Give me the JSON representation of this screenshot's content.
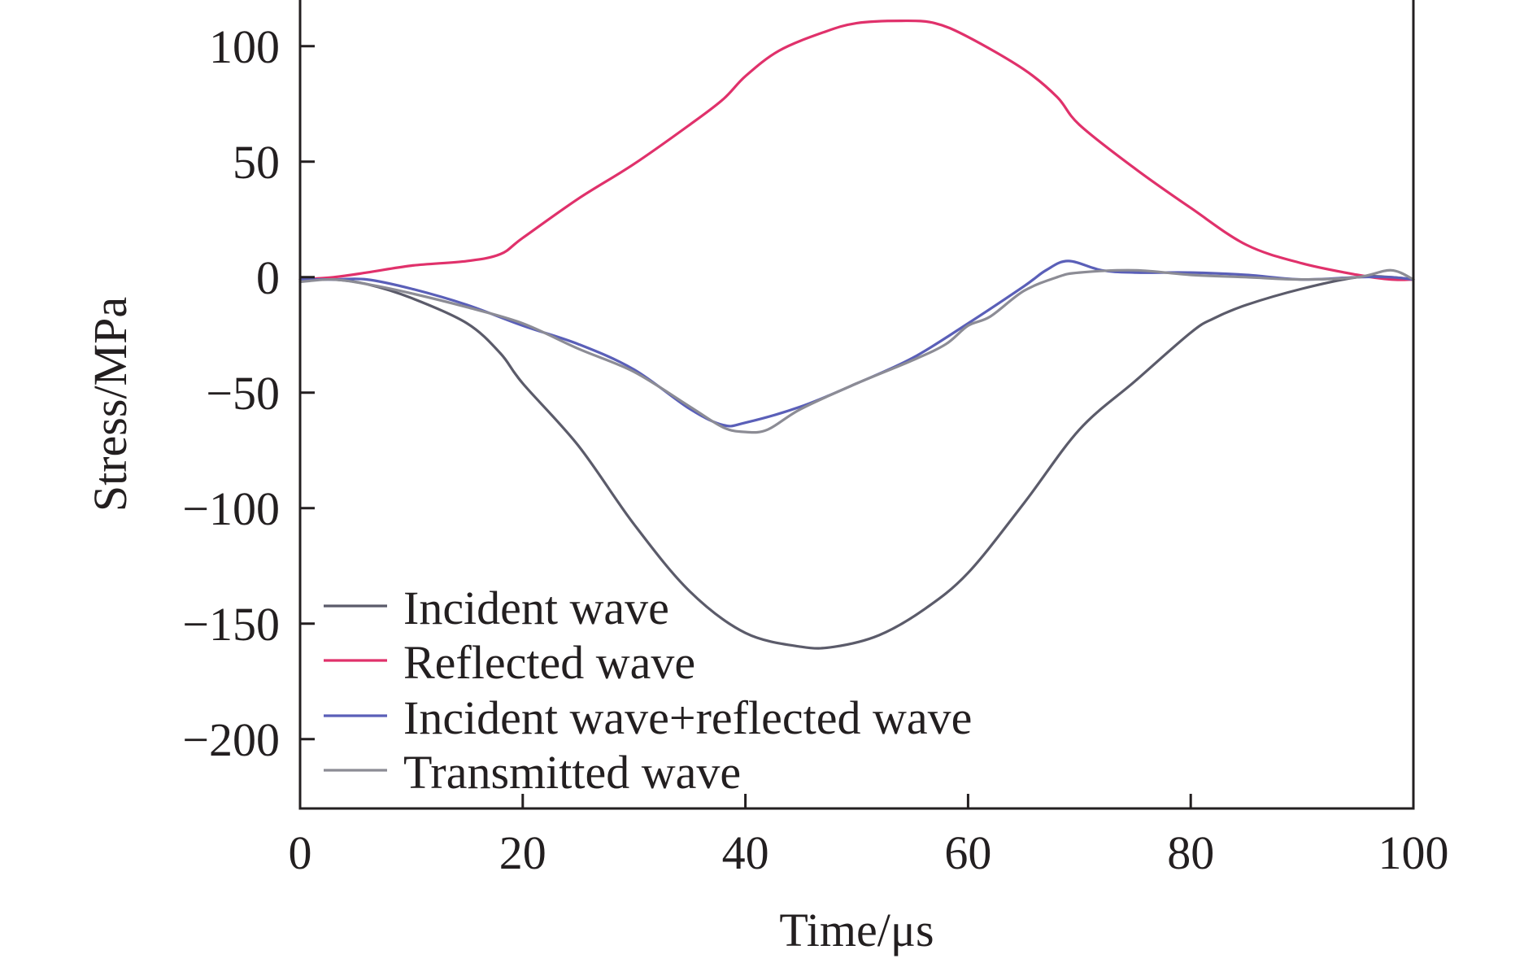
{
  "chart_data": {
    "type": "line",
    "xlabel": "Time/μs",
    "ylabel": "Stress/MPa",
    "xlim": [
      0,
      100
    ],
    "ylim": [
      -230,
      120
    ],
    "x_ticks": [
      0,
      20,
      40,
      60,
      80,
      100
    ],
    "y_ticks": [
      100,
      50,
      0,
      -50,
      -100,
      -150,
      -200
    ],
    "x_tick_labels": [
      "0",
      "20",
      "40",
      "60",
      "80",
      "100"
    ],
    "y_tick_labels": [
      "100",
      "50",
      "0",
      "−50",
      "−100",
      "−150",
      "−200"
    ],
    "grid": false,
    "legend_position": "bottom-left",
    "series": [
      {
        "name": "Incident wave",
        "color": "#5b5b6a",
        "x": [
          0,
          3,
          6,
          10,
          15,
          18,
          20,
          25,
          30,
          35,
          40,
          45,
          48,
          52,
          56,
          60,
          65,
          70,
          75,
          80,
          82,
          85,
          90,
          95,
          98,
          100
        ],
        "y": [
          -1,
          -1,
          -3,
          -9,
          -20,
          -33,
          -46,
          -73,
          -107,
          -136,
          -154,
          -160,
          -160,
          -155,
          -144,
          -128,
          -98,
          -66,
          -45,
          -24,
          -18,
          -12,
          -5,
          0,
          0,
          -1
        ]
      },
      {
        "name": "Reflected wave",
        "color": "#e0316b",
        "x": [
          0,
          3,
          6,
          10,
          15,
          18,
          20,
          25,
          30,
          35,
          38,
          40,
          43,
          47,
          50,
          54,
          57,
          60,
          65,
          68,
          70,
          75,
          80,
          85,
          90,
          95,
          98,
          100
        ],
        "y": [
          -1,
          0,
          2,
          5,
          7,
          10,
          17,
          34,
          49,
          66,
          77,
          87,
          98,
          106,
          110,
          111,
          110,
          104,
          90,
          78,
          66,
          47,
          30,
          14,
          6,
          1,
          -1,
          -1
        ]
      },
      {
        "name": "Incident wave+reflected wave",
        "color": "#5a5fb8",
        "x": [
          0,
          3,
          6,
          10,
          15,
          20,
          25,
          30,
          35,
          38,
          40,
          45,
          50,
          55,
          60,
          65,
          67,
          69,
          72,
          75,
          80,
          85,
          90,
          95,
          98,
          100
        ],
        "y": [
          -1,
          -1,
          -1,
          -5,
          -12,
          -21,
          -29,
          -40,
          -57,
          -64,
          -63,
          -56,
          -46,
          -35,
          -20,
          -4,
          3,
          7,
          3,
          2,
          2,
          1,
          -1,
          0,
          0,
          -1
        ]
      },
      {
        "name": "Transmitted wave",
        "color": "#8c8c95",
        "x": [
          0,
          3,
          6,
          10,
          15,
          20,
          25,
          30,
          35,
          38,
          40,
          42,
          45,
          50,
          55,
          58,
          60,
          62,
          65,
          68,
          70,
          75,
          80,
          85,
          90,
          95,
          98,
          100
        ],
        "y": [
          -2,
          -1,
          -3,
          -7,
          -13,
          -20,
          -31,
          -41,
          -56,
          -65,
          -67,
          -66,
          -57,
          -46,
          -36,
          -29,
          -21,
          -17,
          -6,
          0,
          2,
          3,
          1,
          0,
          -1,
          0,
          3,
          -1
        ]
      }
    ]
  }
}
